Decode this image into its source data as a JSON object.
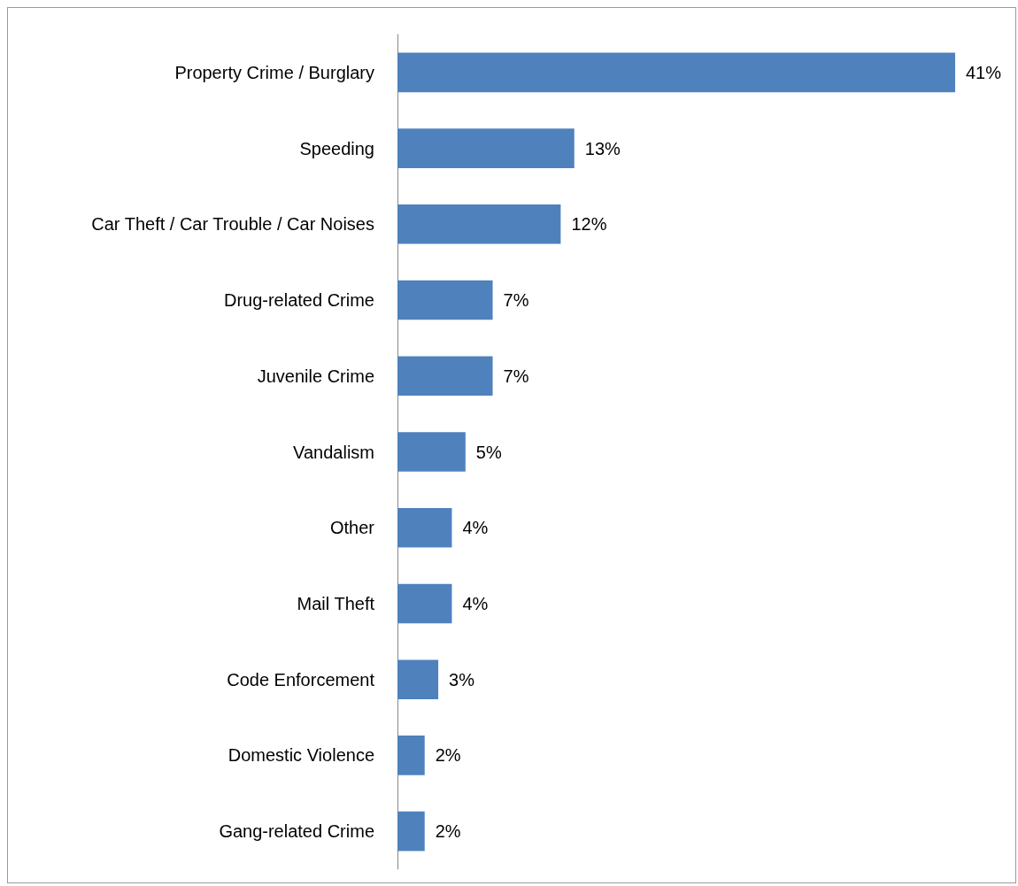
{
  "chart_data": {
    "type": "bar",
    "orientation": "horizontal",
    "categories": [
      "Property Crime / Burglary",
      "Speeding",
      "Car Theft / Car Trouble / Car Noises",
      "Drug-related Crime",
      "Juvenile Crime",
      "Vandalism",
      "Other",
      "Mail Theft",
      "Code Enforcement",
      "Domestic Violence",
      "Gang-related Crime"
    ],
    "values": [
      41,
      13,
      12,
      7,
      7,
      5,
      4,
      4,
      3,
      2,
      2
    ],
    "value_labels": [
      "41%",
      "13%",
      "12%",
      "7%",
      "7%",
      "5%",
      "4%",
      "4%",
      "3%",
      "2%",
      "2%"
    ],
    "color": "#4f81bd"
  }
}
